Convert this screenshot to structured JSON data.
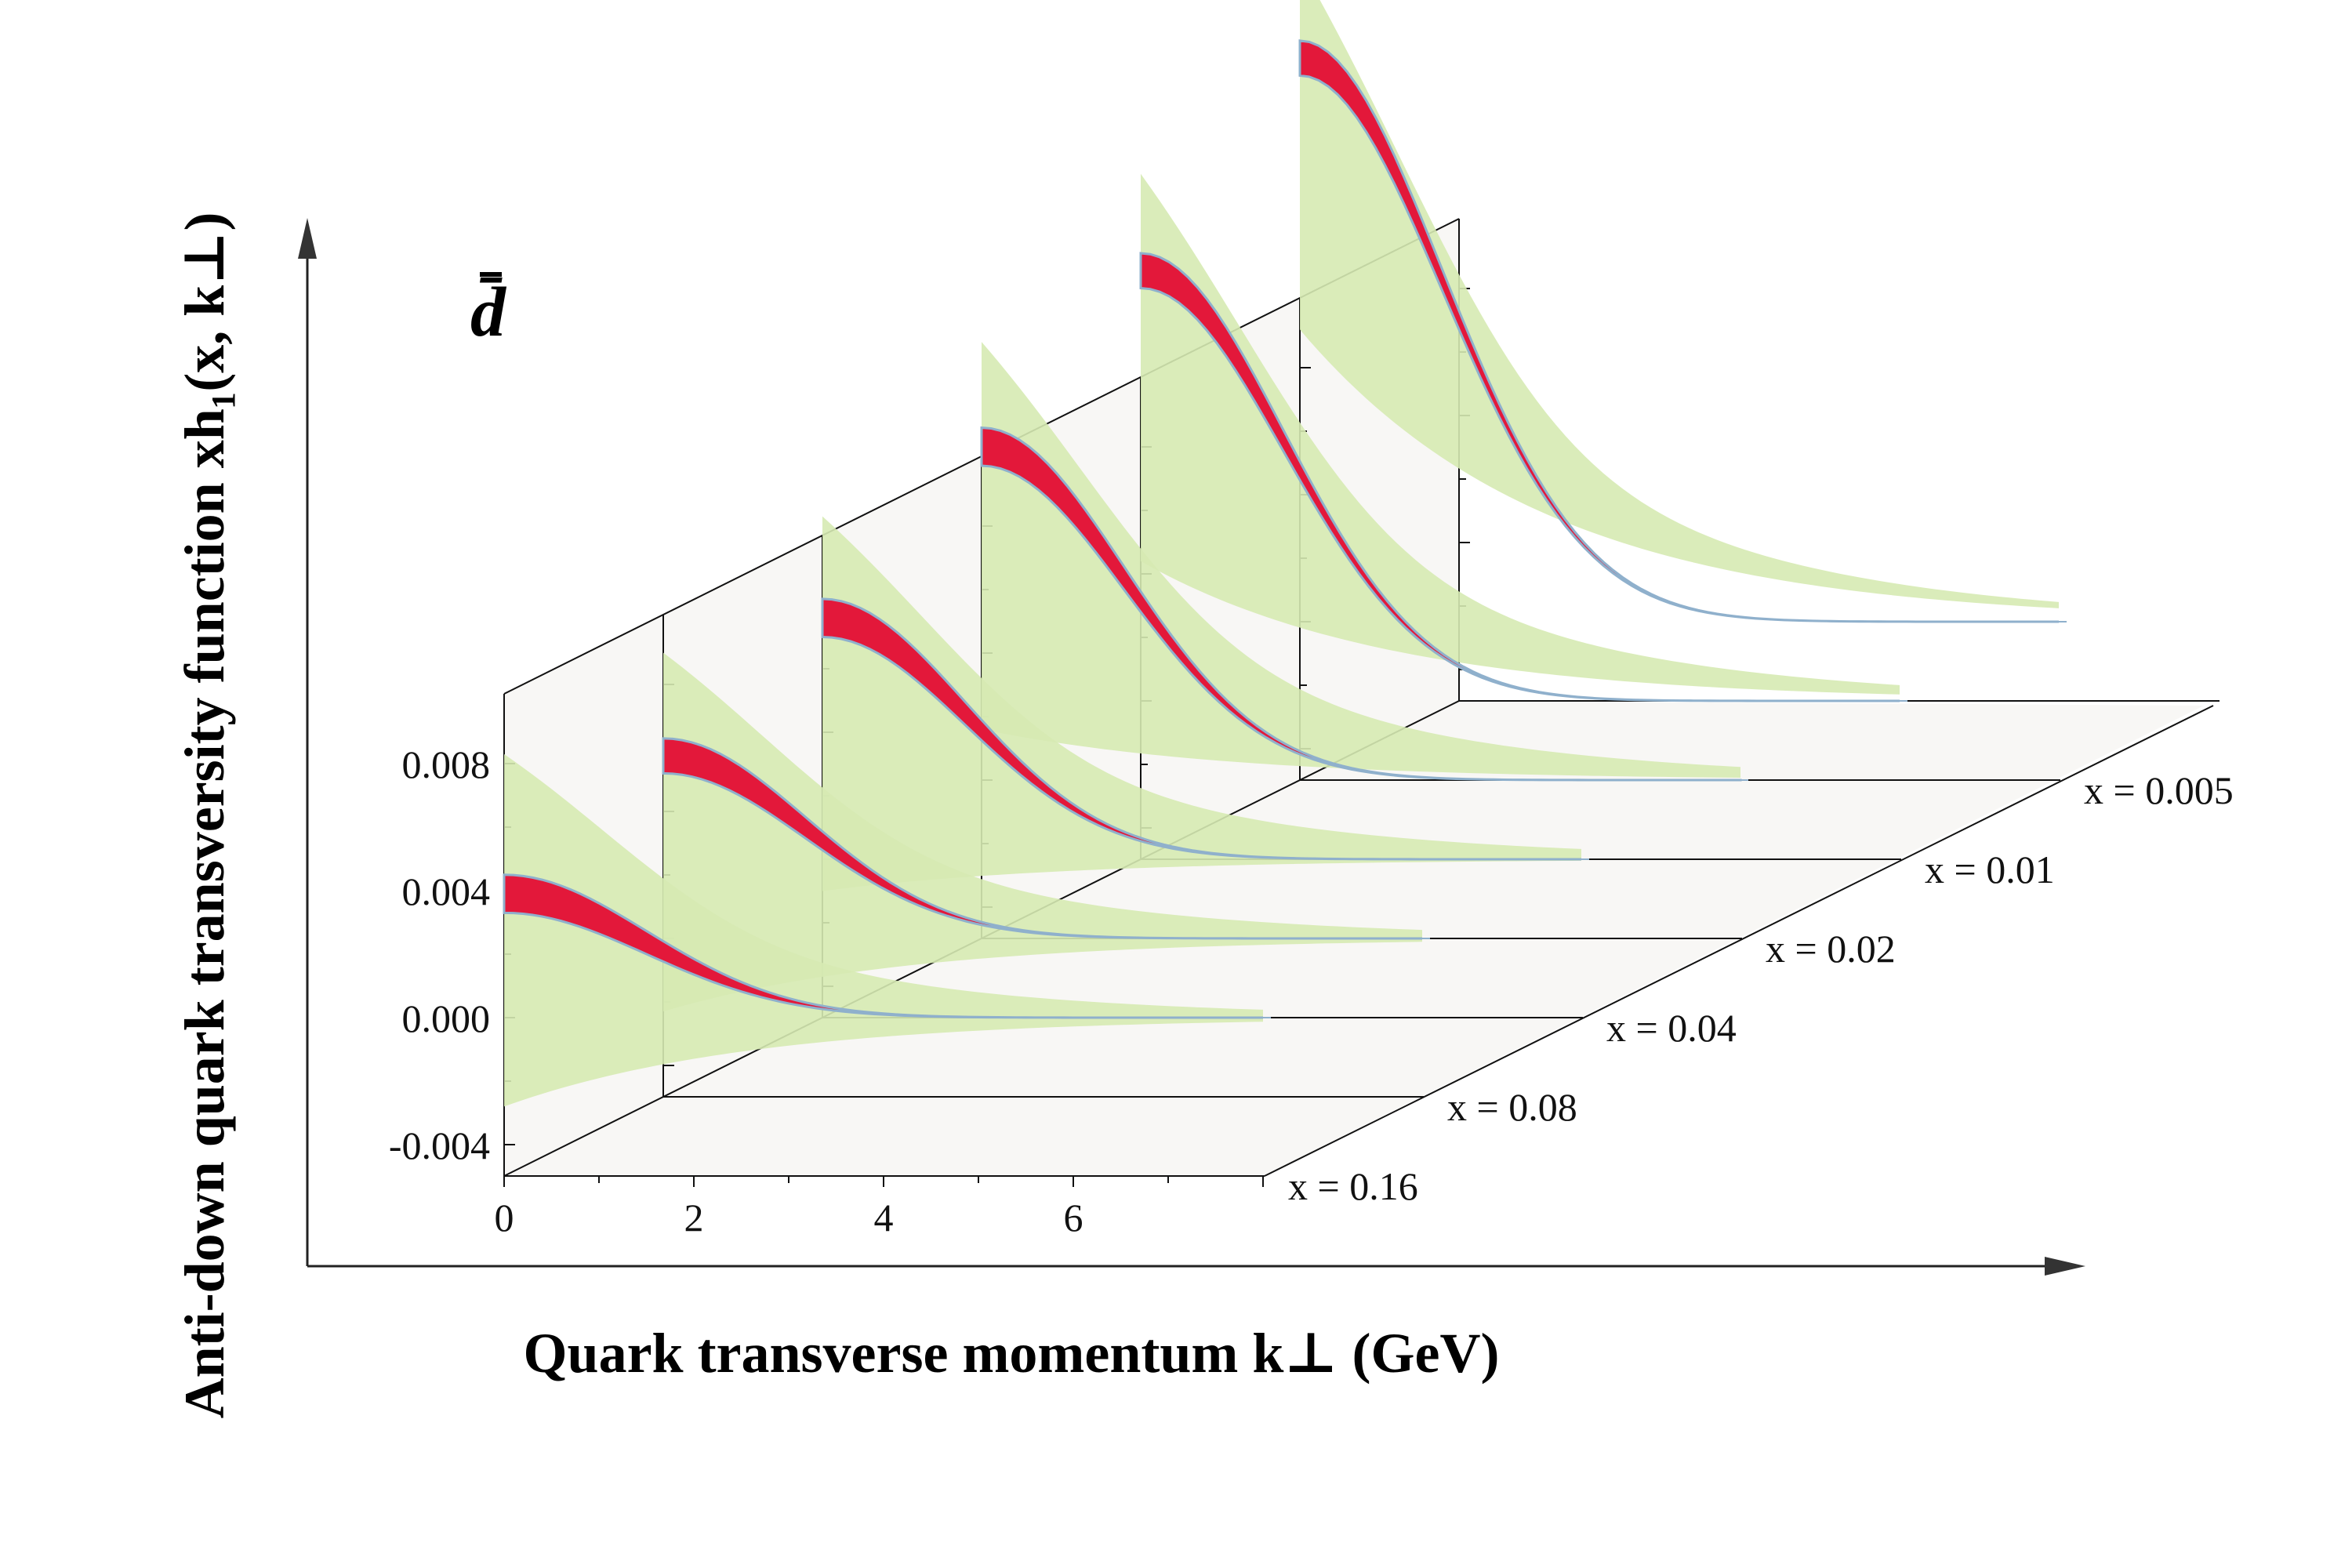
{
  "chart_data": {
    "type": "area",
    "label": "d̄",
    "xlabel": "Quark transverse momentum k⊥ (GeV)",
    "ylabel": "Anti-down quark transversity function xh₁(x, k⊥)",
    "x_ticks": [
      "0",
      "2",
      "4",
      "6"
    ],
    "y_ticks": [
      "0.008",
      "0.004",
      "0.000",
      "-0.004"
    ],
    "xlim": [
      0,
      8
    ],
    "ylim": [
      -0.005,
      0.01
    ],
    "series": [
      {
        "name": "x = 0.16",
        "peak_upper": 0.0045,
        "peak_lower": 0.0033,
        "band_upper": 0.0083,
        "band_lower": -0.0028
      },
      {
        "name": "x = 0.08",
        "peak_upper": 0.0063,
        "peak_lower": 0.0052,
        "band_upper": 0.009,
        "band_lower": -0.0023
      },
      {
        "name": "x = 0.04",
        "peak_upper": 0.0082,
        "peak_lower": 0.007,
        "band_upper": 0.0108,
        "band_lower": -0.001
      },
      {
        "name": "x = 0.02",
        "peak_upper": 0.0111,
        "peak_lower": 0.0099,
        "band_upper": 0.0138,
        "band_lower": 0.0016
      },
      {
        "name": "x = 0.01",
        "peak_upper": 0.0141,
        "peak_lower": 0.013,
        "band_upper": 0.0166,
        "band_lower": 0.0044
      },
      {
        "name": "x = 0.005",
        "peak_upper": 0.0183,
        "peak_lower": 0.0172,
        "band_upper": 0.0207,
        "band_lower": 0.0092
      }
    ],
    "colors": {
      "central_band": "#e3183a",
      "central_edge": "#8fb0cc",
      "outer_band": "#d6eab2",
      "panel": "#f8f7f5",
      "frame": "#111111"
    }
  }
}
